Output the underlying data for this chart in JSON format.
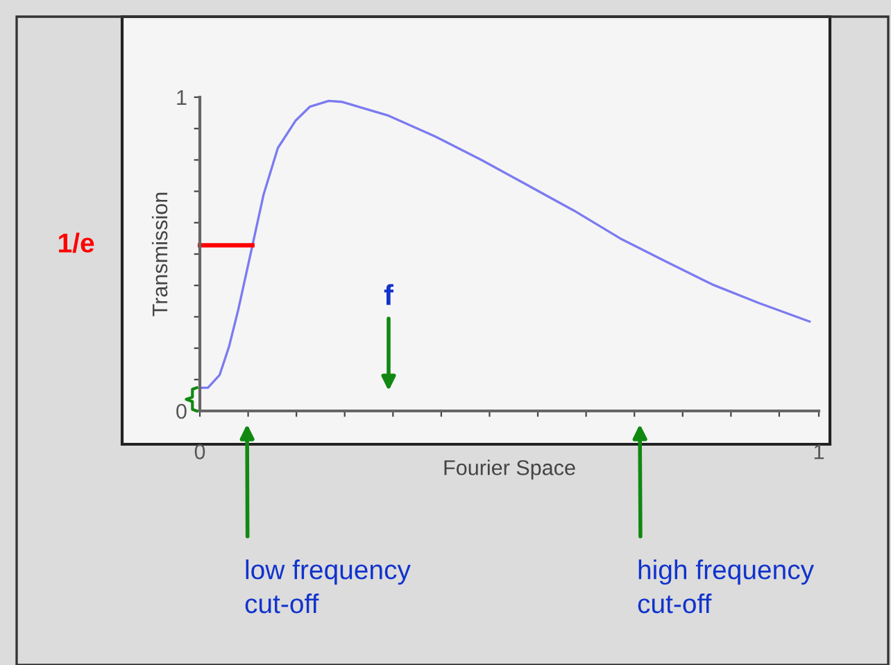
{
  "chart_data": {
    "type": "line",
    "xlabel": "Fourier Space",
    "ylabel": "Transmission",
    "xlim": [
      0,
      1
    ],
    "ylim": [
      0,
      1
    ],
    "xticks": [
      0,
      {
        "value": 0.078,
        "label": null
      },
      {
        "value": 0.156,
        "label": null
      },
      {
        "value": 0.234,
        "label": null
      },
      {
        "value": 0.312,
        "label": null
      },
      {
        "value": 0.39,
        "label": null
      },
      {
        "value": 0.468,
        "label": null
      },
      {
        "value": 0.546,
        "label": null
      },
      {
        "value": 0.624,
        "label": null
      },
      {
        "value": 0.702,
        "label": null
      },
      {
        "value": 0.78,
        "label": null
      },
      {
        "value": 0.858,
        "label": null
      },
      {
        "value": 0.936,
        "label": null
      },
      1
    ],
    "yticks": [
      0,
      {
        "value": 0.1,
        "label": null
      },
      {
        "value": 0.2,
        "label": null
      },
      {
        "value": 0.3,
        "label": null
      },
      {
        "value": 0.4,
        "label": null
      },
      {
        "value": 0.5,
        "label": null
      },
      {
        "value": 0.6,
        "label": null
      },
      {
        "value": 0.7,
        "label": null
      },
      {
        "value": 0.8,
        "label": null
      },
      {
        "value": 0.9,
        "label": null
      },
      1
    ],
    "grid": false,
    "legend": false,
    "marker": "none",
    "line_style": "solid",
    "series": [
      {
        "color": "#7b7bf0",
        "x": [
          0.002,
          0.013,
          0.032,
          0.047,
          0.062,
          0.085,
          0.103,
          0.126,
          0.155,
          0.178,
          0.208,
          0.23,
          0.305,
          0.38,
          0.454,
          0.529,
          0.604,
          0.679,
          0.753,
          0.828,
          0.903,
          0.985
        ],
        "values": [
          0.074,
          0.074,
          0.115,
          0.204,
          0.322,
          0.528,
          0.69,
          0.838,
          0.926,
          0.97,
          0.988,
          0.985,
          0.941,
          0.875,
          0.801,
          0.72,
          0.639,
          0.55,
          0.476,
          0.403,
          0.344,
          0.285
        ]
      },
      {
        "name": "1/e",
        "color": "#ff0000",
        "x": [
          0,
          0.085
        ],
        "values": [
          0.528,
          0.528
        ]
      }
    ],
    "annotations": [
      "f",
      "low frequency\ncut-off",
      "high frequency\ncut-off"
    ]
  }
}
